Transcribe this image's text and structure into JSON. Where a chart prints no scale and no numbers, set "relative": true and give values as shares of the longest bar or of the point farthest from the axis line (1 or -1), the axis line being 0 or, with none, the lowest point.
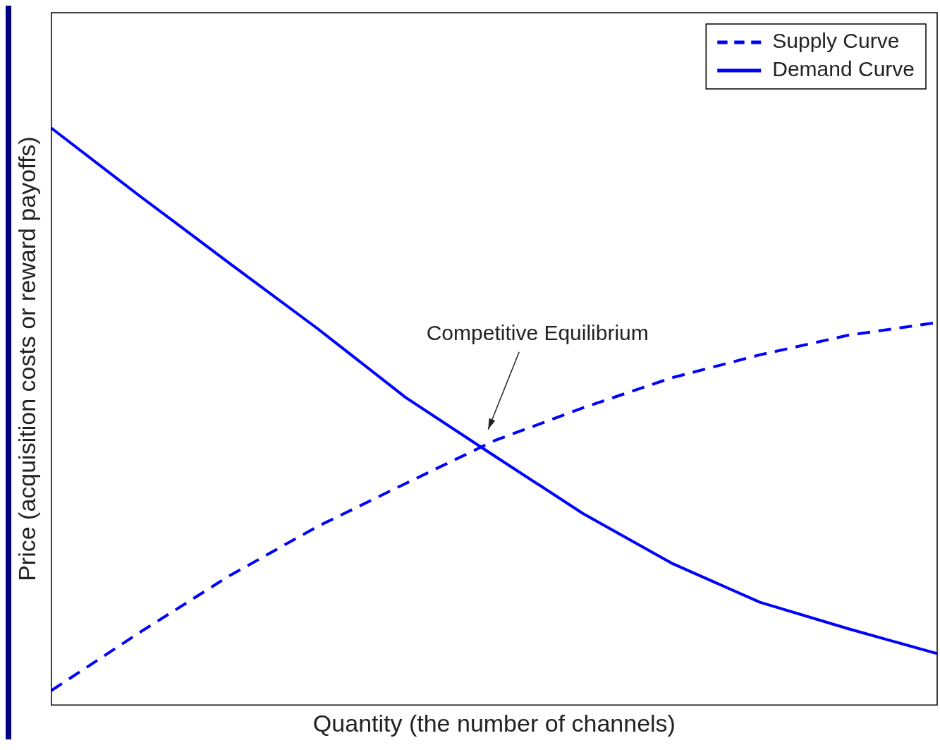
{
  "chart_data": {
    "type": "line",
    "relative": true,
    "xlabel": "Quantity (the number of channels)",
    "ylabel": "Price (acquisition costs or reward payoffs)",
    "categories": [
      null,
      null,
      null,
      null,
      null,
      null,
      null,
      null,
      null,
      null,
      null
    ],
    "series": [
      {
        "name": "Supply Curve",
        "color": "#0000ff",
        "line_style": "dashed",
        "values": [
          0.025,
          0.126,
          0.223,
          0.309,
          0.384,
          0.458,
          0.515,
          0.567,
          0.607,
          0.641,
          0.663
        ]
      },
      {
        "name": "Demand Curve",
        "color": "#0000ff",
        "line_style": "solid",
        "values": [
          1.0,
          0.882,
          0.767,
          0.653,
          0.533,
          0.432,
          0.332,
          0.246,
          0.178,
          0.132,
          0.089
        ]
      }
    ],
    "annotations": [
      "Competitive Equilibrium"
    ],
    "legend": "top right",
    "grid": false,
    "marker": "none"
  }
}
